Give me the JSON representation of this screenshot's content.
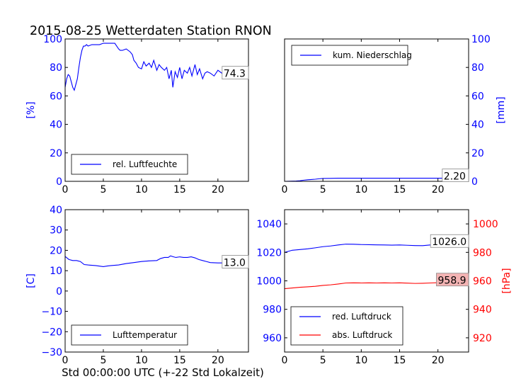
{
  "title": "2015-08-25 Wetterdaten Station RNON",
  "xlabel": "Std 00:00:00 UTC (+-22 Std Lokalzeit)",
  "colors": {
    "blue": "#0000ff",
    "red": "#ff0000",
    "axis": "#000000",
    "redbox": "#f4b4b4"
  },
  "chart_data": [
    {
      "id": "humidity",
      "type": "line",
      "xlim": [
        0,
        24
      ],
      "xticks": [
        0,
        5,
        10,
        15,
        20
      ],
      "ylim": [
        0,
        100
      ],
      "yticks": [
        0,
        20,
        40,
        60,
        80,
        100
      ],
      "ylabel": "[%]",
      "ylabel_color": "#0000ff",
      "tick_color": "#0000ff",
      "legend": "lower-left",
      "last_value": "74.3",
      "series": [
        {
          "name": "rel. Luftfeuchte",
          "color": "#0000ff",
          "x": [
            0,
            0.2,
            0.4,
            0.6,
            0.8,
            1.0,
            1.2,
            1.4,
            1.6,
            1.8,
            2.0,
            2.2,
            2.4,
            2.6,
            2.8,
            3.0,
            3.5,
            4.0,
            4.5,
            5.0,
            5.5,
            6.0,
            6.5,
            7.0,
            7.2,
            7.5,
            8.0,
            8.5,
            8.8,
            9.0,
            9.3,
            9.6,
            10.0,
            10.3,
            10.6,
            11.0,
            11.3,
            11.6,
            12.0,
            12.3,
            12.6,
            13.0,
            13.3,
            13.6,
            13.9,
            14.1,
            14.4,
            14.7,
            15.0,
            15.3,
            15.6,
            16.0,
            16.3,
            16.6,
            17.0,
            17.3,
            17.6,
            18.0,
            18.3,
            18.6,
            19.0,
            19.5,
            20.0,
            20.5,
            21.0,
            21.5,
            22.0,
            22.5,
            23.0,
            23.5,
            24.0
          ],
          "y": [
            66,
            72,
            75,
            74,
            70,
            66,
            64,
            68,
            72,
            80,
            87,
            92,
            95,
            95,
            96,
            95,
            96,
            96,
            96,
            97,
            97,
            97,
            97,
            93,
            92,
            92,
            93,
            91,
            89,
            85,
            83,
            80,
            79,
            84,
            81,
            83,
            80,
            85,
            78,
            82,
            80,
            78,
            80,
            72,
            78,
            66,
            77,
            73,
            80,
            72,
            78,
            76,
            80,
            74,
            82,
            75,
            79,
            72,
            76,
            77,
            76,
            74,
            78,
            76,
            77,
            75,
            76,
            75,
            77,
            75,
            74.3
          ]
        }
      ]
    },
    {
      "id": "precipitation",
      "type": "line",
      "xlim": [
        0,
        24
      ],
      "xticks": [
        0,
        5,
        10,
        15,
        20
      ],
      "ylim": [
        0,
        100
      ],
      "yticks": [
        0,
        20,
        40,
        60,
        80,
        100
      ],
      "ylabel": "[mm]",
      "ylabel_color": "#0000ff",
      "tick_color": "#0000ff",
      "yaxis_side": "right",
      "legend": "upper-left",
      "last_value": "2.20",
      "series": [
        {
          "name": "kum. Niederschlag",
          "color": "#0000ff",
          "x": [
            0,
            1.5,
            2.0,
            2.5,
            3.0,
            3.5,
            4.0,
            4.5,
            5.0,
            6.0,
            7.0,
            8.0,
            10.0,
            12.0,
            15.0,
            18.0,
            20.0,
            22.0,
            24.0
          ],
          "y": [
            0,
            0.2,
            0.4,
            0.8,
            1.1,
            1.3,
            1.5,
            1.8,
            2.0,
            2.1,
            2.2,
            2.2,
            2.2,
            2.2,
            2.2,
            2.2,
            2.2,
            2.2,
            2.2
          ]
        }
      ]
    },
    {
      "id": "temperature",
      "type": "line",
      "xlim": [
        0,
        24
      ],
      "xticks": [
        0,
        5,
        10,
        15,
        20
      ],
      "ylim": [
        -30,
        40
      ],
      "yticks": [
        -30,
        -20,
        -10,
        0,
        10,
        20,
        30,
        40
      ],
      "ylabel": "[C]",
      "ylabel_color": "#0000ff",
      "tick_color": "#0000ff",
      "legend": "lower-left",
      "last_value": "13.0",
      "series": [
        {
          "name": "Lufttemperatur",
          "color": "#0000ff",
          "x": [
            0,
            0.5,
            1.0,
            1.5,
            2.0,
            2.5,
            3.0,
            4.0,
            5.0,
            5.5,
            6.0,
            7.0,
            8.0,
            9.0,
            10.0,
            11.0,
            12.0,
            12.5,
            13.0,
            13.5,
            13.8,
            14.2,
            14.5,
            15.0,
            15.5,
            16.0,
            16.5,
            17.0,
            17.5,
            18.0,
            18.5,
            19.0,
            20.0,
            21.0,
            22.0,
            23.0,
            24.0
          ],
          "y": [
            17,
            15.5,
            15,
            15,
            14.5,
            13,
            12.8,
            12.5,
            12,
            12.3,
            12.5,
            12.8,
            13.5,
            14,
            14.5,
            14.8,
            15,
            16,
            16.5,
            16.5,
            17.3,
            16.8,
            16.5,
            16.8,
            16.5,
            16.5,
            16.8,
            16.3,
            15.5,
            15,
            14.5,
            14,
            13.8,
            13.8,
            13.6,
            13.3,
            13.0
          ]
        }
      ]
    },
    {
      "id": "pressure",
      "type": "line",
      "xlim": [
        0,
        24
      ],
      "xticks": [
        0,
        5,
        10,
        15,
        20
      ],
      "ylim": [
        950,
        1050
      ],
      "yticks": [
        960,
        980,
        1000,
        1020,
        1040
      ],
      "tick_color": "#0000ff",
      "y2lim": [
        910,
        1010
      ],
      "y2ticks": [
        920,
        940,
        960,
        980,
        1000
      ],
      "y2label": "[hPa]",
      "y2label_color": "#ff0000",
      "y2tick_color": "#ff0000",
      "legend": "lower-left",
      "last_value": "1026.0",
      "last_value2": "958.9",
      "series": [
        {
          "name": "red. Luftdruck",
          "color": "#0000ff",
          "axis": "left",
          "x": [
            0,
            1,
            2,
            3,
            4,
            5,
            6,
            7,
            8,
            9,
            10,
            11,
            12,
            13,
            14,
            15,
            16,
            17,
            18,
            19,
            20,
            21,
            22,
            23,
            24
          ],
          "y": [
            1020,
            1021.5,
            1022,
            1022.5,
            1023.2,
            1024,
            1024.5,
            1025.2,
            1025.8,
            1025.7,
            1025.5,
            1025.4,
            1025.3,
            1025.2,
            1025.1,
            1025.2,
            1025,
            1024.8,
            1024.7,
            1025.2,
            1025.6,
            1025.8,
            1026,
            1026,
            1026
          ]
        },
        {
          "name": "abs. Luftdruck",
          "color": "#ff0000",
          "axis": "right",
          "x": [
            0,
            1,
            2,
            3,
            4,
            5,
            6,
            7,
            8,
            9,
            10,
            11,
            12,
            13,
            14,
            15,
            16,
            17,
            18,
            19,
            20,
            21,
            22,
            23,
            24
          ],
          "y": [
            954.5,
            955,
            955.5,
            955.8,
            956.2,
            956.8,
            957.2,
            957.8,
            958.5,
            958.6,
            958.5,
            958.6,
            958.5,
            958.6,
            958.5,
            958.6,
            958.4,
            958.2,
            958.3,
            958.5,
            958.7,
            958.8,
            958.9,
            958.9,
            958.9
          ]
        }
      ]
    }
  ]
}
